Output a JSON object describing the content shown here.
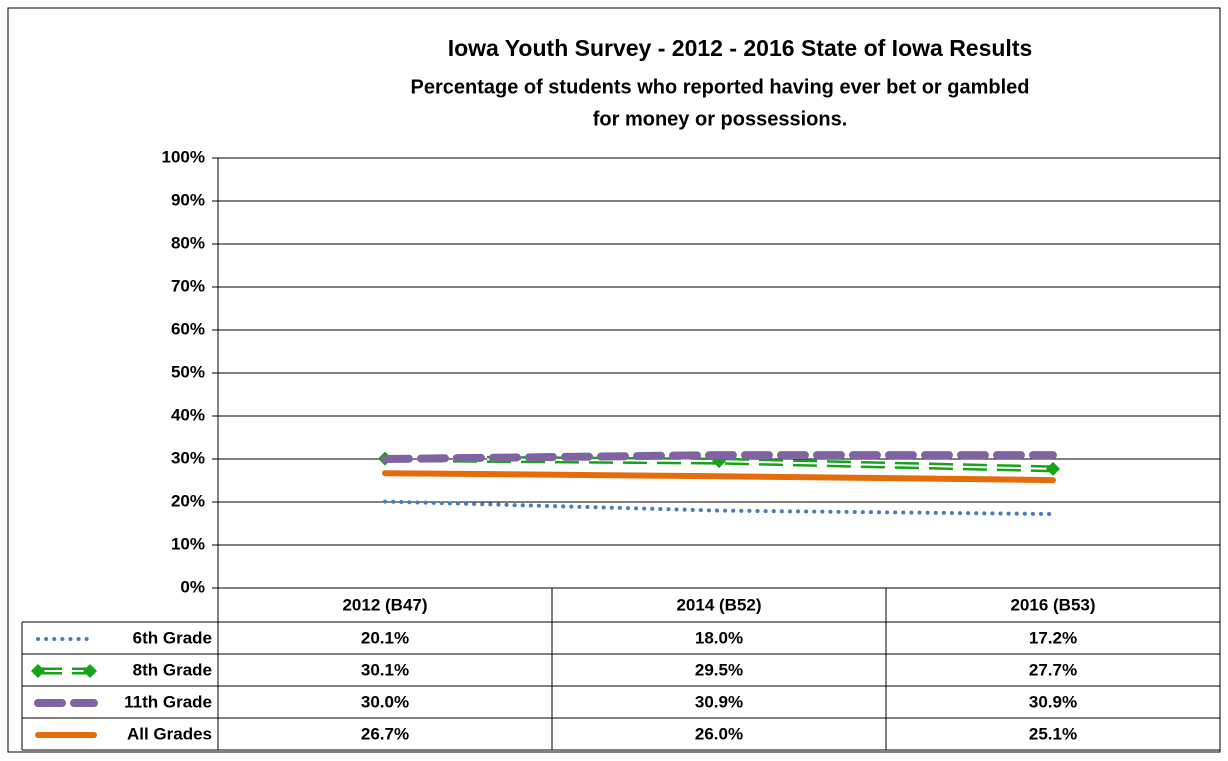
{
  "chart_data": {
    "type": "line",
    "title": "Iowa Youth Survey - 2012 - 2016 State of Iowa Results",
    "subtitle": [
      "Percentage of students who reported having ever bet or gambled",
      "for money or possessions."
    ],
    "categories": [
      "2012 (B47)",
      "2014 (B52)",
      "2016 (B53)"
    ],
    "series": [
      {
        "name": "6th Grade",
        "color": "#4a7ebb",
        "style": "dotted",
        "values": [
          20.1,
          18.0,
          17.2
        ],
        "value_labels": [
          "20.1%",
          "18.0%",
          "17.2%"
        ]
      },
      {
        "name": "8th Grade",
        "color": "#17a317",
        "style": "double-dashed",
        "marker": "diamond",
        "values": [
          30.1,
          29.5,
          27.7
        ],
        "value_labels": [
          "30.1%",
          "29.5%",
          "27.7%"
        ]
      },
      {
        "name": "11th Grade",
        "color": "#8064a2",
        "style": "dashed",
        "values": [
          30.0,
          30.9,
          30.9
        ],
        "value_labels": [
          "30.0%",
          "30.9%",
          "30.9%"
        ]
      },
      {
        "name": "All Grades",
        "color": "#e46c0a",
        "style": "solid",
        "values": [
          26.7,
          26.0,
          25.1
        ],
        "value_labels": [
          "26.7%",
          "26.0%",
          "25.1%"
        ]
      }
    ],
    "ylim": [
      0,
      100
    ],
    "yticks": [
      {
        "value": 0,
        "label": "0%"
      },
      {
        "value": 10,
        "label": "10%"
      },
      {
        "value": 20,
        "label": "20%"
      },
      {
        "value": 30,
        "label": "30%"
      },
      {
        "value": 40,
        "label": "40%"
      },
      {
        "value": 50,
        "label": "50%"
      },
      {
        "value": 60,
        "label": "60%"
      },
      {
        "value": 70,
        "label": "70%"
      },
      {
        "value": 80,
        "label": "80%"
      },
      {
        "value": 90,
        "label": "90%"
      },
      {
        "value": 100,
        "label": "100%"
      }
    ],
    "grid": true
  }
}
